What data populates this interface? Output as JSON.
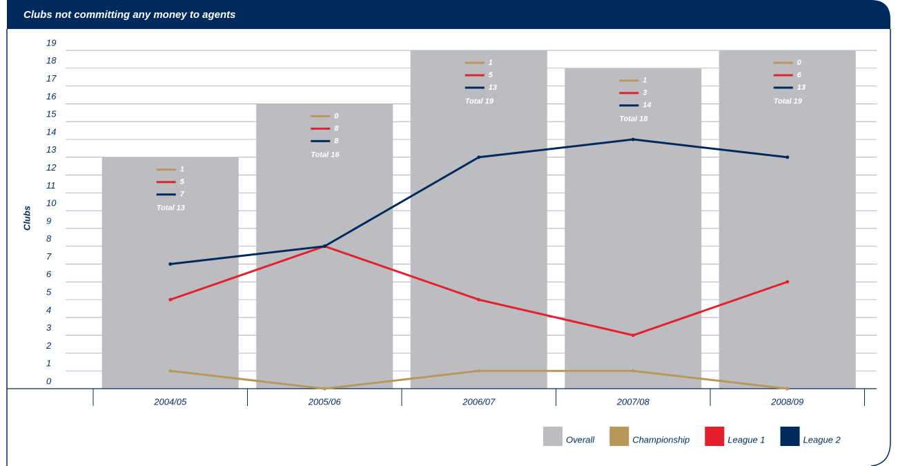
{
  "chart_data": {
    "type": "bar_line",
    "title": "Clubs not committing any money to agents",
    "y_label": "Clubs",
    "categories": [
      "2004/05",
      "2005/06",
      "2006/07",
      "2007/08",
      "2008/09"
    ],
    "series": [
      {
        "name": "Overall",
        "type": "bar",
        "color": "#bcbdc0",
        "values": [
          13,
          16,
          19,
          18,
          19
        ],
        "value_labels": [
          "Total 13",
          "Total 16",
          "Total 19",
          "Total 18",
          "Total 19"
        ]
      },
      {
        "name": "Championship",
        "type": "line",
        "color": "#b9975b",
        "values": [
          1,
          0,
          1,
          1,
          0
        ]
      },
      {
        "name": "League 1",
        "type": "line",
        "color": "#e5202e",
        "values": [
          5,
          8,
          5,
          3,
          6
        ]
      },
      {
        "name": "League 2",
        "type": "line",
        "color": "#002a5c",
        "values": [
          7,
          8,
          13,
          14,
          13
        ]
      }
    ],
    "ylim": [
      0,
      19
    ],
    "yticks": [
      0,
      1,
      2,
      3,
      4,
      5,
      6,
      7,
      8,
      9,
      10,
      11,
      12,
      13,
      14,
      15,
      16,
      17,
      18,
      19
    ],
    "grid": true,
    "legend": "bottom-right"
  }
}
